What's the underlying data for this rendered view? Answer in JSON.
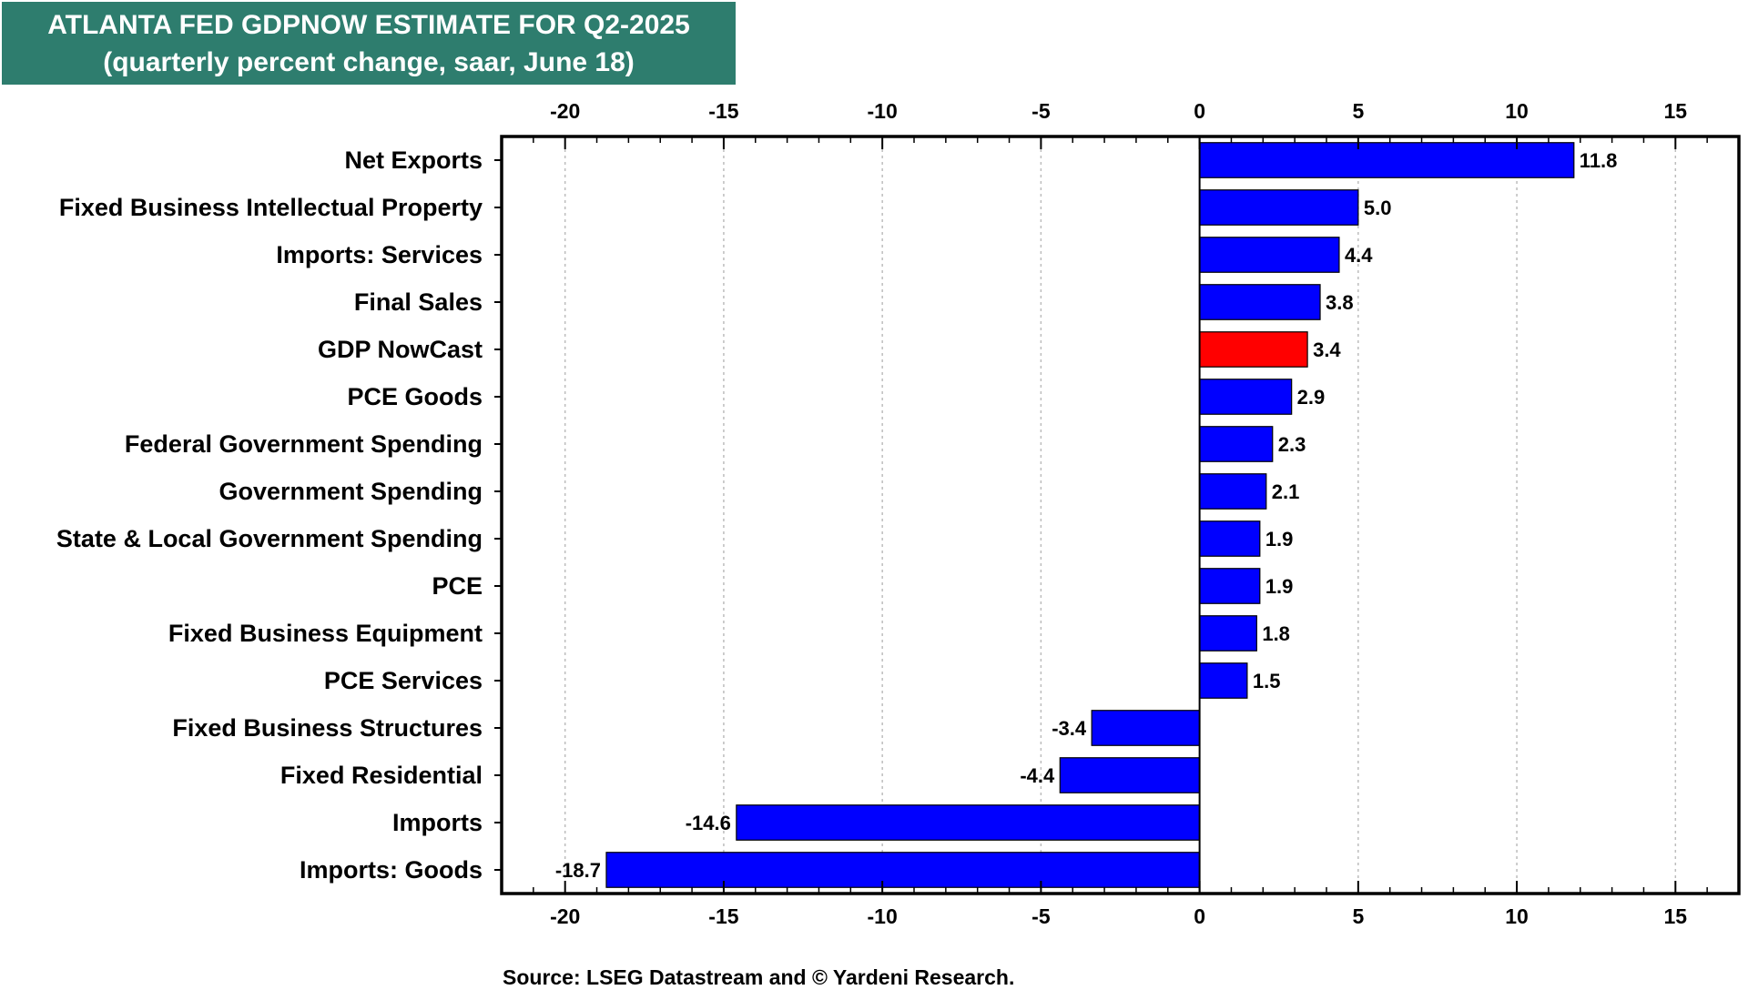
{
  "title": {
    "line1": "ATLANTA FED GDPNOW ESTIMATE FOR Q2-2025",
    "line2": "(quarterly percent change, saar, June 18)"
  },
  "source": "Source: LSEG Datastream and © Yardeni Research.",
  "colors": {
    "title_bg": "#2e7d6e",
    "bar": "#0000ff",
    "highlight": "#ff0000"
  },
  "chart_data": {
    "type": "bar",
    "orientation": "horizontal",
    "categories": [
      "Net Exports",
      "Fixed Business Intellectual Property",
      "Imports: Services",
      "Final Sales",
      "GDP NowCast",
      "PCE Goods",
      "Federal Government Spending",
      "Government Spending",
      "State & Local Government Spending",
      "PCE",
      "Fixed Business Equipment",
      "PCE Services",
      "Fixed Business Structures",
      "Fixed Residential",
      "Imports",
      "Imports: Goods"
    ],
    "values": [
      11.8,
      5.0,
      4.4,
      3.8,
      3.4,
      2.9,
      2.3,
      2.1,
      1.9,
      1.9,
      1.8,
      1.5,
      -3.4,
      -4.4,
      -14.6,
      -18.7
    ],
    "value_labels": [
      "11.8",
      "5.0",
      "4.4",
      "3.8",
      "3.4",
      "2.9",
      "2.3",
      "2.1",
      "1.9",
      "1.9",
      "1.8",
      "1.5",
      "-3.4",
      "-4.4",
      "-14.6",
      "-18.7"
    ],
    "highlight_category": "GDP NowCast",
    "xlim": [
      -22,
      17
    ],
    "x_ticks": [
      -20,
      -15,
      -10,
      -5,
      0,
      5,
      10,
      15
    ],
    "x_tick_labels": [
      "-20",
      "-15",
      "-10",
      "-5",
      "0",
      "5",
      "10",
      "15"
    ],
    "x_axis_position": "top and bottom",
    "grid": "vertical dotted",
    "legend": "none"
  }
}
